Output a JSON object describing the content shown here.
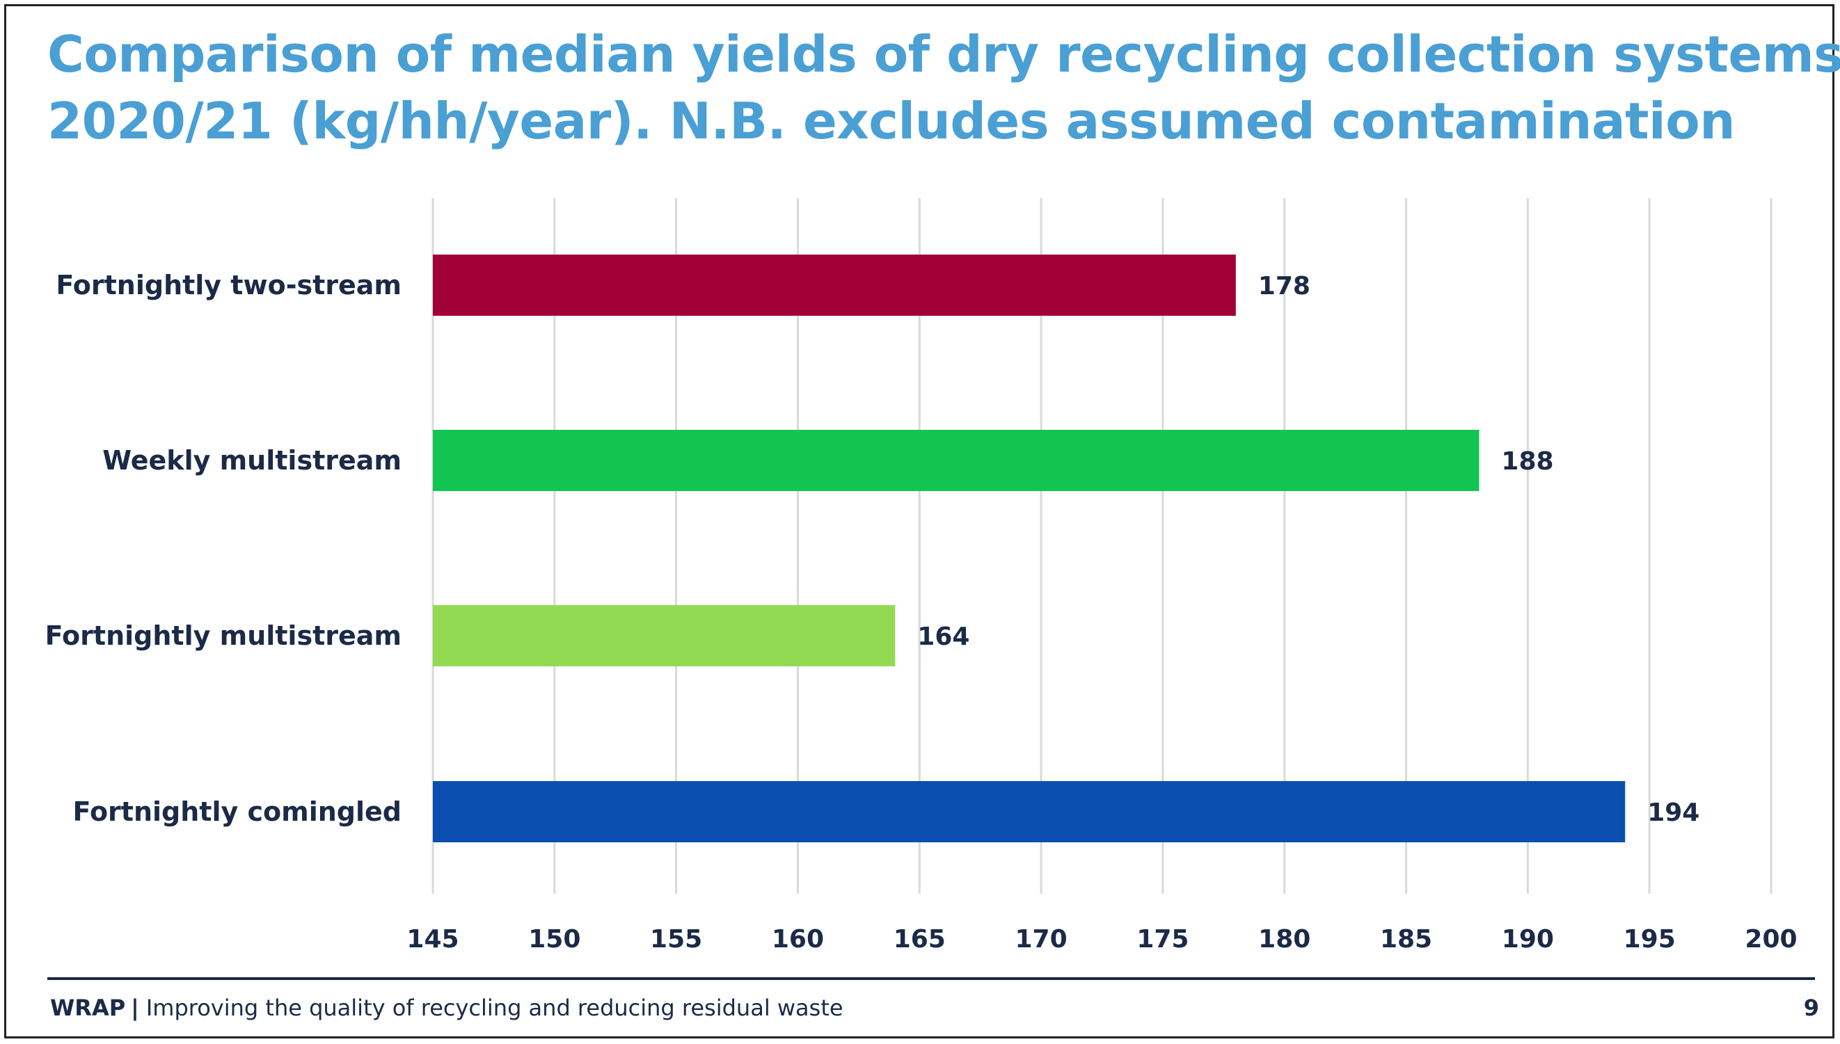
{
  "colors": {
    "title": "#4a9fd4",
    "text_dark": "#1b2a47",
    "grid": "#d9d9d9",
    "footer_rule": "#1b2a47"
  },
  "chart_data": {
    "type": "bar",
    "orientation": "horizontal",
    "title_lines": [
      "Comparison of median yields of dry recycling collection systems",
      "2020/21 (kg/hh/year). N.B. excludes assumed contamination"
    ],
    "categories": [
      "Fortnightly two-stream",
      "Weekly multistream",
      "Fortnightly multistream",
      "Fortnightly comingled"
    ],
    "values": [
      178,
      188,
      164,
      194
    ],
    "value_labels": [
      "178",
      "188",
      "164",
      "194"
    ],
    "bar_colors": [
      "#a00036",
      "#12c550",
      "#92da52",
      "#0b4fb0"
    ],
    "xlim": [
      145,
      200
    ],
    "xticks": [
      "145",
      "150",
      "155",
      "160",
      "165",
      "170",
      "175",
      "180",
      "185",
      "190",
      "195",
      "200"
    ],
    "grid": true,
    "legend": "none",
    "xlabel": "",
    "ylabel": ""
  },
  "footer": {
    "brand": "WRAP",
    "separator": "|",
    "tagline": "Improving the quality of recycling and reducing residual waste",
    "page_number": "9"
  }
}
